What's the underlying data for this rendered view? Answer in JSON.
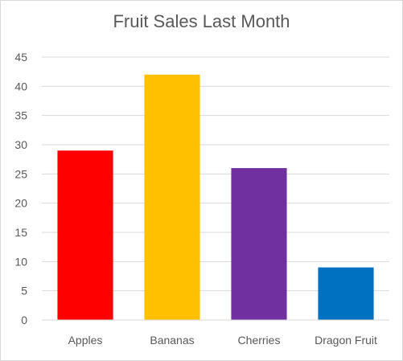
{
  "chart_data": {
    "type": "bar",
    "title": "Fruit Sales Last Month",
    "xlabel": "",
    "ylabel": "",
    "categories": [
      "Apples",
      "Bananas",
      "Cherries",
      "Dragon Fruit"
    ],
    "values": [
      29,
      42,
      26,
      9
    ],
    "colors": [
      "#ff0000",
      "#ffc000",
      "#7030a0",
      "#0070c0"
    ],
    "ylim": [
      0,
      45
    ],
    "yticks": [
      0,
      5,
      10,
      15,
      20,
      25,
      30,
      35,
      40,
      45
    ],
    "grid": true,
    "legend": "none"
  }
}
